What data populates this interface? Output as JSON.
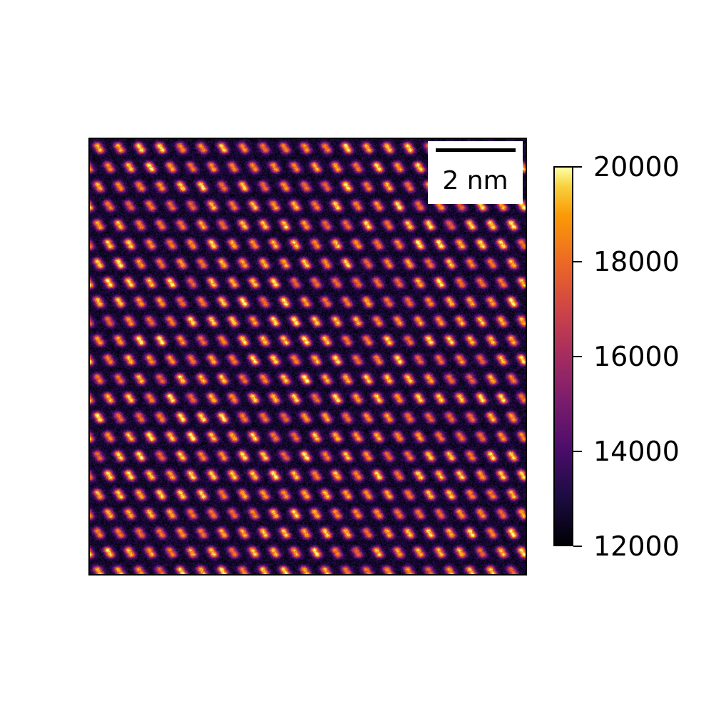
{
  "scalebar": {
    "label": "2 nm"
  },
  "colorbar": {
    "colormap": "inferno",
    "min": 12000,
    "max": 20000,
    "ticks": [
      "20000",
      "18000",
      "16000",
      "14000",
      "12000"
    ]
  },
  "colors": {
    "frame": "#000000",
    "background": "#ffffff",
    "image_dark": "#000004",
    "image_bright": "#fcffa4"
  }
}
